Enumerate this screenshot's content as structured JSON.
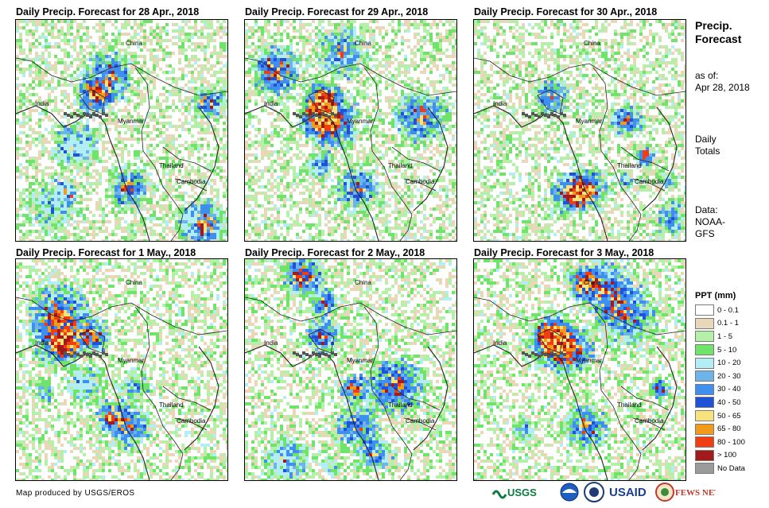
{
  "panels": [
    {
      "title": "Daily Precip. Forecast for 28 Apr., 2018",
      "seed": 11
    },
    {
      "title": "Daily Precip. Forecast for 29 Apr., 2018",
      "seed": 23
    },
    {
      "title": "Daily Precip. Forecast for 30 Apr., 2018",
      "seed": 37
    },
    {
      "title": "Daily Precip. Forecast for 1 May., 2018",
      "seed": 41
    },
    {
      "title": "Daily Precip. Forecast for 2 May., 2018",
      "seed": 53
    },
    {
      "title": "Daily Precip. Forecast for 3 May., 2018",
      "seed": 67
    }
  ],
  "map_labels": {
    "china": "China",
    "india": "India",
    "myanmar": "Myanmar",
    "thailand": "Thailand",
    "cambodia": "Cambodia"
  },
  "side": {
    "title_line1": "Precip.",
    "title_line2": "Forecast",
    "asof_line1": "as of:",
    "asof_line2": "Apr 28, 2018",
    "daily_line1": "Daily",
    "daily_line2": "Totals",
    "data_line1": "Data:",
    "data_line2": "NOAA-",
    "data_line3": "GFS"
  },
  "legend": {
    "title": "PPT (mm)",
    "items": [
      {
        "label": "0 - 0.1",
        "color": "#ffffff"
      },
      {
        "label": "0.1 - 1",
        "color": "#e9d8b7"
      },
      {
        "label": "1 - 5",
        "color": "#b4f0a8"
      },
      {
        "label": "5 - 10",
        "color": "#6fe36a"
      },
      {
        "label": "10 - 20",
        "color": "#b3eef5"
      },
      {
        "label": "20 - 30",
        "color": "#6cb4ea"
      },
      {
        "label": "30 - 40",
        "color": "#3e8fee"
      },
      {
        "label": "40 - 50",
        "color": "#1f52d6"
      },
      {
        "label": "50 - 65",
        "color": "#f8e27c"
      },
      {
        "label": "65 - 80",
        "color": "#f29a1c"
      },
      {
        "label": "80 - 100",
        "color": "#f03d12"
      },
      {
        "label": "> 100",
        "color": "#a31a1a"
      },
      {
        "label": "No Data",
        "color": "#9b9b9b"
      }
    ]
  },
  "footer": {
    "credit": "Map produced by USGS/EROS",
    "logo_usgs": "USGS",
    "logo_usaid": "USAID",
    "logo_fews": "FEWS NET"
  }
}
